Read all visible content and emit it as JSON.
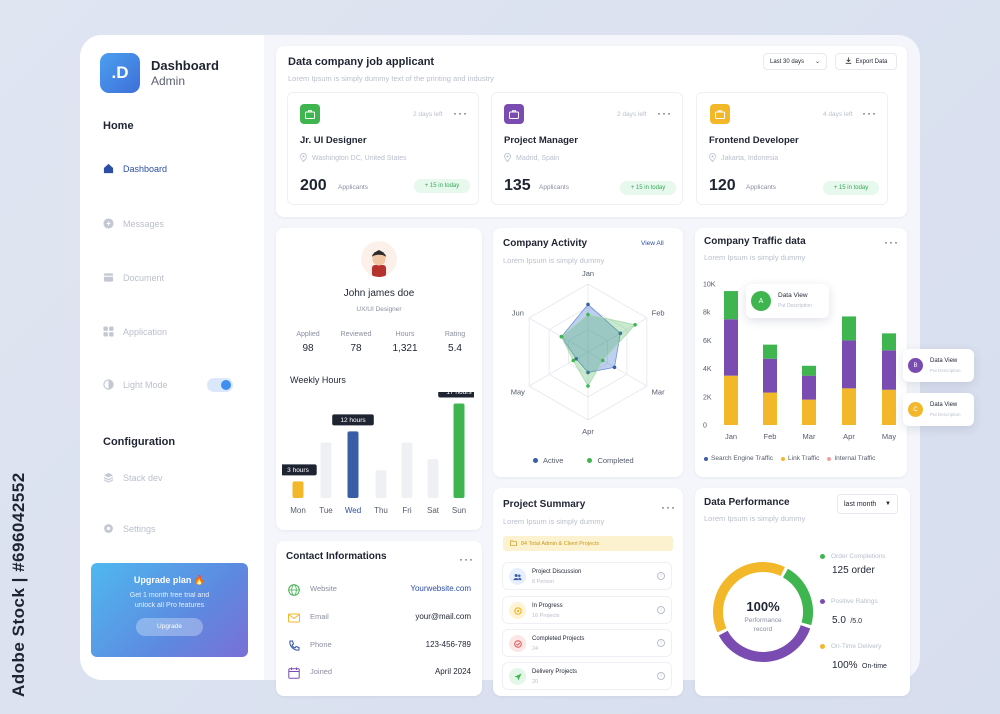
{
  "watermark": "Adobe Stock | #696042552",
  "brand": {
    "logo_letter": ".D",
    "title": "Dashboard",
    "subtitle": "Admin"
  },
  "sidebar": {
    "section_home": "Home",
    "items": [
      {
        "label": "Dashboard",
        "icon": "home-icon",
        "active": true
      },
      {
        "label": "Messages",
        "icon": "message-icon"
      },
      {
        "label": "Document",
        "icon": "document-icon"
      },
      {
        "label": "Application",
        "icon": "grid-icon"
      },
      {
        "label": "Light Mode",
        "icon": "light-mode-icon",
        "toggle": true
      }
    ],
    "section_config": "Configuration",
    "config_items": [
      {
        "label": "Stack dev",
        "icon": "stack-icon"
      },
      {
        "label": "Settings",
        "icon": "gear-icon"
      }
    ],
    "upgrade": {
      "title": "Upgrade plan 🔥",
      "text_line1": "Get 1 month free trial and",
      "text_line2": "unlock all Pro features",
      "button": "Upgrade"
    }
  },
  "jobs": {
    "title": "Data company job applicant",
    "subtitle": "Lorem Ipsum is simply dummy text of the printing and industry",
    "filter": "Last 30 days",
    "export": "Export Data",
    "cards": [
      {
        "title": "Jr. UI Designer",
        "location": "Washington DC, United States",
        "count": "200",
        "count_label": "Applicants",
        "days": "2 days left",
        "badge": "+ 15 in today",
        "color": "#3fb54f"
      },
      {
        "title": "Project Manager",
        "location": "Madrid, Spain",
        "count": "135",
        "count_label": "Applicants",
        "days": "2 days left",
        "badge": "+ 15 in today",
        "color": "#7a4bb0"
      },
      {
        "title": "Frontend Developer",
        "location": "Jakarta, Indonesia",
        "count": "120",
        "count_label": "Applicants",
        "days": "4 days left",
        "badge": "+ 15 in today",
        "color": "#f3b82a"
      }
    ]
  },
  "profile": {
    "name": "John james doe",
    "role": "UX/UI Designer",
    "stats": [
      {
        "label": "Applied",
        "value": "98"
      },
      {
        "label": "Reviewed",
        "value": "78"
      },
      {
        "label": "Hours",
        "value": "1,321"
      },
      {
        "label": "Rating",
        "value": "5.4"
      }
    ],
    "weekly_title": "Weekly Hours",
    "days": [
      "Mon",
      "Tue",
      "Wed",
      "Thu",
      "Fri",
      "Sat",
      "Sun"
    ],
    "tooltips": {
      "mon": "3 hours",
      "wed": "12 hours",
      "sun": "17 hours"
    }
  },
  "activity": {
    "title": "Company Activity",
    "view_all": "View All",
    "subtitle": "Lorem Ipsum is simply dummy",
    "axes": [
      "Jan",
      "Feb",
      "Mar",
      "Apr",
      "May",
      "Jun"
    ],
    "legend": [
      "Active",
      "Completed"
    ]
  },
  "traffic": {
    "title": "Company Traffic data",
    "subtitle": "Lorem Ipsum is simply dummy",
    "y_ticks": [
      "10K",
      "8k",
      "6K",
      "4K",
      "2K",
      "0"
    ],
    "x_labels": [
      "Jan",
      "Feb",
      "Mar",
      "Apr",
      "May"
    ],
    "legend": [
      "Search Engine Traffic",
      "Link Traffic",
      "Internal Traffic"
    ],
    "popup": {
      "title": "Data View",
      "sub": "Put Description",
      "letter": "A"
    },
    "side_cards": [
      {
        "title": "Data View",
        "sub": "Put Description",
        "letter": "B"
      },
      {
        "title": "Data View",
        "sub": "Put Description",
        "letter": "C"
      }
    ]
  },
  "contact": {
    "title": "Contact Informations",
    "rows": [
      {
        "label": "Website",
        "value": "Yourwebsite.com",
        "icon": "globe-icon"
      },
      {
        "label": "Email",
        "value": "your@mail.com",
        "icon": "mail-icon"
      },
      {
        "label": "Phone",
        "value": "123-456-789",
        "icon": "phone-icon"
      },
      {
        "label": "Joined",
        "value": "April 2024",
        "icon": "calendar-icon"
      }
    ]
  },
  "summary": {
    "title": "Project Summary",
    "subtitle": "Lorem Ipsum is simply dummy",
    "banner": "84 Total Admin & Client Projects",
    "items": [
      {
        "title": "Project Discussion",
        "sub": "8 Person"
      },
      {
        "title": "In Progress",
        "sub": "16 Projects"
      },
      {
        "title": "Completed Projects",
        "sub": "24"
      },
      {
        "title": "Delivery Projects",
        "sub": "20"
      }
    ]
  },
  "performance": {
    "title": "Data Performance",
    "subtitle": "Lorem Ipsum is simply dummy",
    "filter": "last month",
    "center_value": "100%",
    "center_label1": "Performance",
    "center_label2": "record",
    "metrics": [
      {
        "label": "Order Completions",
        "value": "125 order",
        "color": "#3fb54f"
      },
      {
        "label": "Positive Ratings",
        "value": "5.0",
        "suffix": "/5.0",
        "color": "#7a4bb0"
      },
      {
        "label": "On-Time Delivery",
        "value": "100%",
        "suffix": "On-time",
        "color": "#f3b82a"
      }
    ]
  },
  "chart_data": [
    {
      "type": "bar",
      "title": "Weekly Hours",
      "categories": [
        "Mon",
        "Tue",
        "Wed",
        "Thu",
        "Fri",
        "Sat",
        "Sun"
      ],
      "values": [
        3,
        10,
        12,
        5,
        10,
        7,
        17
      ]
    },
    {
      "type": "bar",
      "title": "Company Traffic data",
      "categories": [
        "Jan",
        "Feb",
        "Mar",
        "Apr",
        "May"
      ],
      "ylim": [
        0,
        10000
      ],
      "series": [
        {
          "name": "Search Engine Traffic",
          "values": [
            4000,
            2400,
            1700,
            3400,
            2800
          ]
        },
        {
          "name": "Link Traffic",
          "values": [
            3500,
            2300,
            1800,
            2600,
            2500
          ]
        },
        {
          "name": "Internal Traffic",
          "values": [
            2000,
            1000,
            700,
            1700,
            1200
          ]
        }
      ]
    },
    {
      "type": "radar",
      "title": "Company Activity",
      "categories": [
        "Jan",
        "Feb",
        "Mar",
        "Apr",
        "May",
        "Jun"
      ],
      "series": [
        {
          "name": "Active",
          "values": [
            0.7,
            0.55,
            0.45,
            0.3,
            0.2,
            0.45
          ]
        },
        {
          "name": "Completed",
          "values": [
            0.55,
            0.8,
            0.25,
            0.5,
            0.25,
            0.45
          ]
        }
      ]
    },
    {
      "type": "pie",
      "title": "Data Performance",
      "categories": [
        "Order Completions",
        "Positive Ratings",
        "On-Time Delivery"
      ],
      "values": [
        22,
        38,
        40
      ]
    }
  ]
}
